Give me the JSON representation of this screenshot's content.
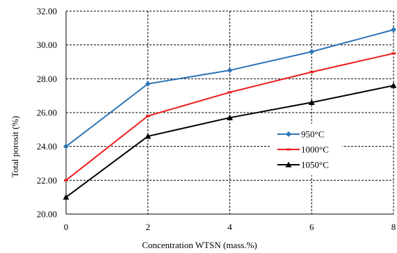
{
  "chart_data": {
    "type": "line",
    "title": "",
    "xlabel": "Concentration  WTSN (mass.%)",
    "ylabel": "Total porosit (%)",
    "x": [
      0,
      2,
      4,
      6,
      8
    ],
    "xlim": [
      0,
      8
    ],
    "ylim": [
      20,
      32
    ],
    "x_ticks": [
      "0",
      "2",
      "4",
      "6",
      "8"
    ],
    "y_ticks": [
      "20.00",
      "22.00",
      "24.00",
      "26.00",
      "28.00",
      "30.00",
      "32.00"
    ],
    "grid": true,
    "grid_style": "dashed",
    "legend_position": "right",
    "series": [
      {
        "name": "950°C",
        "values": [
          24.0,
          27.7,
          28.5,
          29.6,
          30.9
        ],
        "color": "#2E75B6",
        "marker": "diamond"
      },
      {
        "name": "1000°C",
        "values": [
          22.0,
          25.8,
          27.2,
          28.4,
          29.5
        ],
        "color": "#EE1C1C",
        "marker": "dash"
      },
      {
        "name": "1050°C",
        "values": [
          21.0,
          24.6,
          25.7,
          26.6,
          27.6
        ],
        "color": "#000000",
        "marker": "triangle"
      }
    ]
  }
}
